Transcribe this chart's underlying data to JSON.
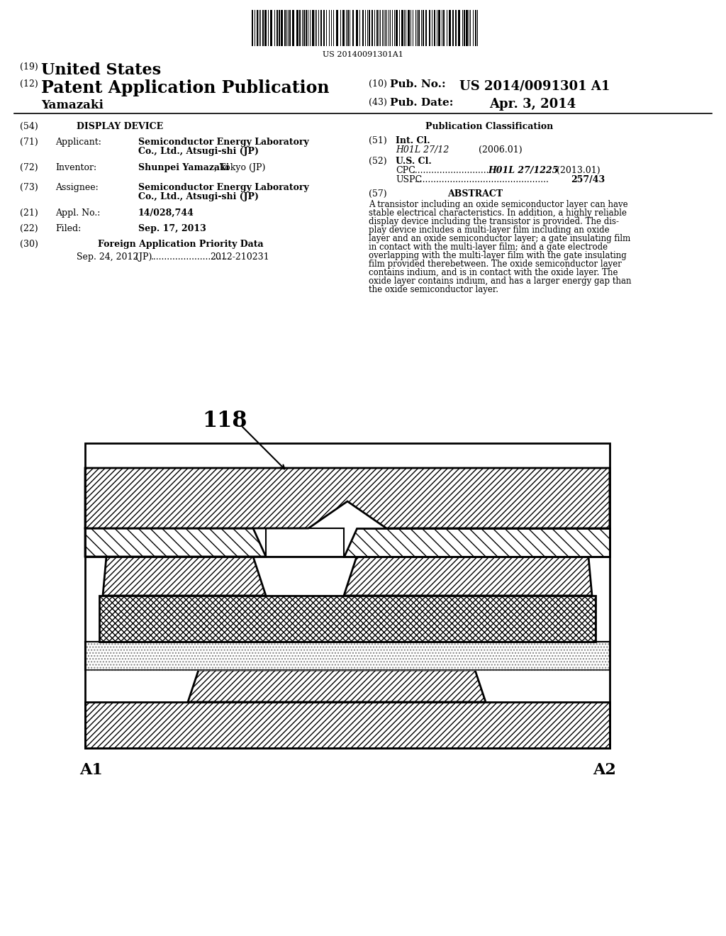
{
  "background_color": "#ffffff",
  "barcode_text": "US 20140091301A1",
  "header": {
    "number_19": "(19)",
    "united_states": "United States",
    "number_12": "(12)",
    "patent_app_pub": "Patent Application Publication",
    "yamazaki": "Yamazaki",
    "number_10": "(10)",
    "pub_no_label": "Pub. No.:",
    "pub_no_value": "US 2014/0091301 A1",
    "number_43": "(43)",
    "pub_date_label": "Pub. Date:",
    "pub_date_value": "Apr. 3, 2014"
  },
  "abstract_lines": [
    "A transistor including an oxide semiconductor layer can have",
    "stable electrical characteristics. In addition, a highly reliable",
    "display device including the transistor is provided. The dis-",
    "play device includes a multi-layer film including an oxide",
    "layer and an oxide semiconductor layer; a gate insulating film",
    "in contact with the multi-layer film; and a gate electrode",
    "overlapping with the multi-layer film with the gate insulating",
    "film provided therebetween. The oxide semiconductor layer",
    "contains indium, and is in contact with the oxide layer. The",
    "oxide layer contains indium, and has a larger energy gap than",
    "the oxide semiconductor layer."
  ],
  "diagram_label": "118",
  "label_A1": "A1",
  "label_A2": "A2"
}
